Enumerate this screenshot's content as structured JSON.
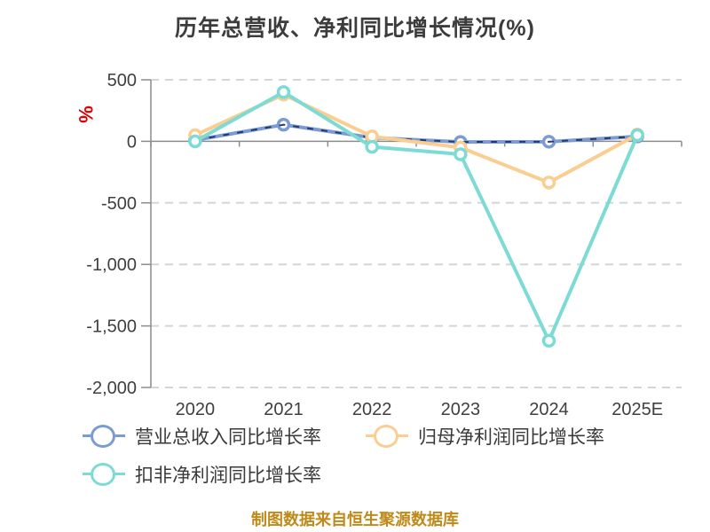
{
  "chart_data": {
    "type": "line",
    "title": "历年总营收、净利同比增长情况(%)",
    "ylabel": "%",
    "xlabel": "",
    "categories": [
      "2020",
      "2021",
      "2022",
      "2023",
      "2024",
      "2025E"
    ],
    "series": [
      {
        "name": "营业总收入同比增长率",
        "color": "#7d9bd3",
        "overlay_dash_color": "#223a70",
        "values": [
          10,
          135,
          30,
          -5,
          -3,
          40
        ]
      },
      {
        "name": "归母净利润同比增长率",
        "color": "#facd91",
        "values": [
          50,
          380,
          40,
          -50,
          -335,
          55
        ]
      },
      {
        "name": "扣非净利润同比增长率",
        "color": "#7cdbd4",
        "values": [
          0,
          400,
          -45,
          -105,
          -1620,
          50
        ]
      }
    ],
    "ylim": [
      -2000,
      500
    ],
    "yticks": [
      {
        "value": 500,
        "label": "500"
      },
      {
        "value": 0,
        "label": "0"
      },
      {
        "value": -500,
        "label": "-500"
      },
      {
        "value": -1000,
        "label": "-1,000"
      },
      {
        "value": -1500,
        "label": "-1,500"
      },
      {
        "value": -2000,
        "label": "-2,000"
      }
    ],
    "grid": "horizontal dashed",
    "legend_position": "bottom",
    "axis_color": "#8c8c8c",
    "grid_color": "#d5d5d5",
    "ylabel_color": "#e00000",
    "footer": "制图数据来自恒生聚源数据库",
    "footer_color": "#bf8a1a"
  }
}
